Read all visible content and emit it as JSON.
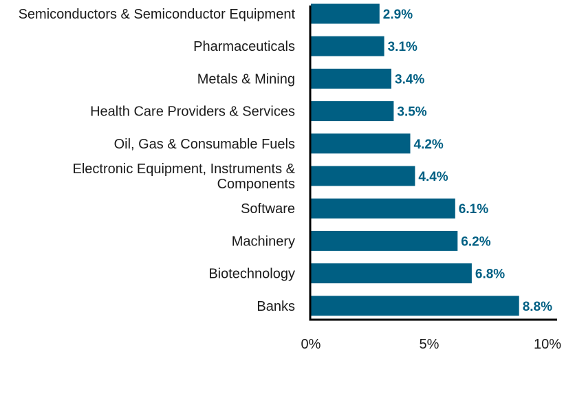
{
  "chart_data": {
    "type": "bar",
    "orientation": "horizontal",
    "categories": [
      "Semiconductors & Semiconductor Equipment",
      "Pharmaceuticals",
      "Metals & Mining",
      "Health Care Providers & Services",
      "Oil, Gas & Consumable Fuels",
      "Electronic Equipment, Instruments & Components",
      "Software",
      "Machinery",
      "Biotechnology",
      "Banks"
    ],
    "category_lines": [
      [
        "Semiconductors & Semiconductor Equipment"
      ],
      [
        "Pharmaceuticals"
      ],
      [
        "Metals & Mining"
      ],
      [
        "Health Care Providers & Services"
      ],
      [
        "Oil, Gas & Consumable Fuels"
      ],
      [
        "Electronic Equipment, Instruments &",
        "Components"
      ],
      [
        "Software"
      ],
      [
        "Machinery"
      ],
      [
        "Biotechnology"
      ],
      [
        "Banks"
      ]
    ],
    "values": [
      2.9,
      3.1,
      3.4,
      3.5,
      4.2,
      4.4,
      6.1,
      6.2,
      6.8,
      8.8
    ],
    "value_labels": [
      "2.9%",
      "3.1%",
      "3.4%",
      "3.5%",
      "4.2%",
      "4.4%",
      "6.1%",
      "6.2%",
      "6.8%",
      "8.8%"
    ],
    "xticks": [
      0,
      5,
      10
    ],
    "xtick_labels": [
      "0%",
      "5%",
      "10%"
    ],
    "xlim": [
      0,
      10
    ],
    "title": "",
    "xlabel": "",
    "ylabel": "",
    "grid": false,
    "bar_color": "#005f83",
    "label_color": "#005f83",
    "axis_color": "#000000"
  }
}
